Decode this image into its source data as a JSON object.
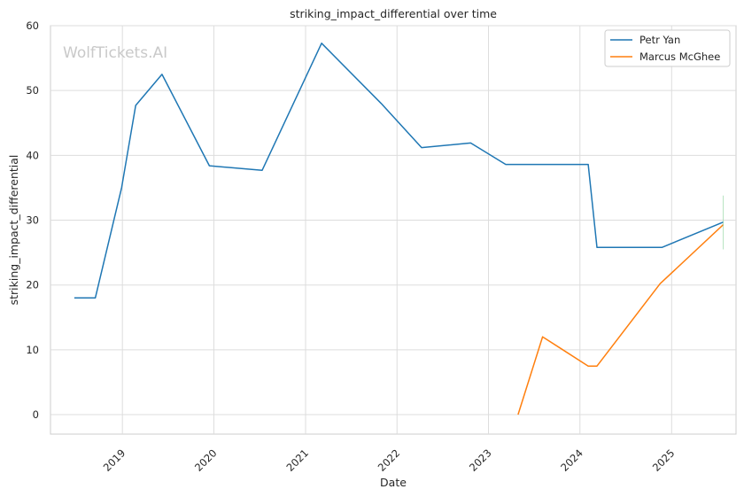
{
  "chart_data": {
    "type": "line",
    "title": "striking_impact_differential over time",
    "xlabel": "Date",
    "ylabel": "striking_impact_differential",
    "x_type": "date",
    "xlim": [
      "2018-03-20",
      "2025-09-15"
    ],
    "ylim": [
      -3,
      60
    ],
    "yticks": [
      0,
      10,
      20,
      30,
      40,
      50,
      60
    ],
    "xticks": [
      "2019-01-01",
      "2020-01-01",
      "2021-01-01",
      "2022-01-01",
      "2023-01-01",
      "2024-01-01",
      "2025-01-01"
    ],
    "xtick_labels": [
      "2019",
      "2020",
      "2021",
      "2022",
      "2023",
      "2024",
      "2025"
    ],
    "grid": true,
    "legend_position": "top-right",
    "watermark": "WolfTickets.AI",
    "series": [
      {
        "name": "Petr Yan",
        "color": "#1f77b4",
        "points": [
          [
            "2018-06-23",
            18.0
          ],
          [
            "2018-09-15",
            18.0
          ],
          [
            "2018-12-29",
            35.0
          ],
          [
            "2019-02-23",
            47.7
          ],
          [
            "2019-06-08",
            52.5
          ],
          [
            "2019-12-14",
            38.4
          ],
          [
            "2020-07-12",
            37.7
          ],
          [
            "2021-03-06",
            57.3
          ],
          [
            "2021-10-30",
            48.0
          ],
          [
            "2022-04-09",
            41.2
          ],
          [
            "2022-10-22",
            41.9
          ],
          [
            "2023-03-11",
            38.6
          ],
          [
            "2024-02-03",
            38.6
          ],
          [
            "2024-03-09",
            25.8
          ],
          [
            "2024-11-23",
            25.8
          ],
          [
            "2025-07-26",
            29.7
          ]
        ]
      },
      {
        "name": "Marcus McGhee",
        "color": "#ff7f0e",
        "points": [
          [
            "2023-04-29",
            0.0
          ],
          [
            "2023-08-05",
            12.0
          ],
          [
            "2024-02-03",
            7.5
          ],
          [
            "2024-03-09",
            7.5
          ],
          [
            "2024-11-16",
            20.2
          ],
          [
            "2025-07-26",
            29.3
          ]
        ]
      }
    ]
  }
}
